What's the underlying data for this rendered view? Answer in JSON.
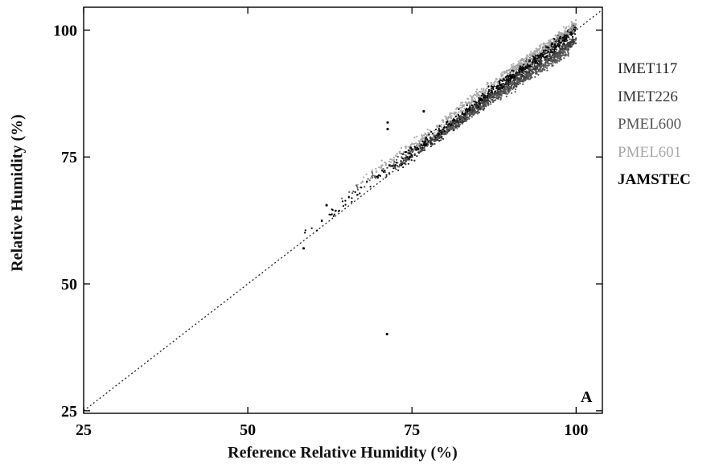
{
  "chart_data": {
    "type": "scatter",
    "title": "",
    "xlabel": "Reference Relative Humidity (%)",
    "ylabel": "Relative Humidity (%)",
    "xlim": [
      25,
      104
    ],
    "ylim": [
      24.5,
      104.5
    ],
    "xticks": [
      "25",
      "50",
      "75",
      "100"
    ],
    "yticks": [
      "25",
      "50",
      "75",
      "100"
    ],
    "panel_label": "A",
    "grid": false,
    "reference_line": "1:1 dotted",
    "legend_position": "right",
    "series": [
      {
        "name": "IMET117",
        "color": "#1e1e1e",
        "trend": [
          [
            72,
            72
          ],
          [
            80,
            80
          ],
          [
            90,
            90.5
          ],
          [
            100,
            100.5
          ]
        ]
      },
      {
        "name": "IMET226",
        "color": "#3a3a3a",
        "trend": [
          [
            70,
            71
          ],
          [
            80,
            80
          ],
          [
            90,
            89
          ],
          [
            100,
            98
          ]
        ]
      },
      {
        "name": "PMEL600",
        "color": "#5a5a5a",
        "trend": [
          [
            64,
            67
          ],
          [
            75,
            76
          ],
          [
            88,
            87
          ],
          [
            99,
            96
          ]
        ]
      },
      {
        "name": "PMEL601",
        "color": "#a8a8a8",
        "trend": [
          [
            66,
            69
          ],
          [
            78,
            80
          ],
          [
            90,
            92
          ],
          [
            100,
            101
          ]
        ]
      },
      {
        "name": "JAMSTEC",
        "color": "#000000",
        "trend": [
          [
            58,
            59
          ],
          [
            70,
            71
          ],
          [
            85,
            86
          ],
          [
            100,
            100
          ]
        ]
      }
    ],
    "outliers": [
      [
        71.2,
        40.1
      ],
      [
        71.3,
        81.8
      ],
      [
        71.3,
        80.5
      ],
      [
        74.8,
        76.8
      ],
      [
        76.8,
        84.0
      ],
      [
        58.5,
        57.0
      ],
      [
        62.0,
        65.5
      ]
    ]
  }
}
